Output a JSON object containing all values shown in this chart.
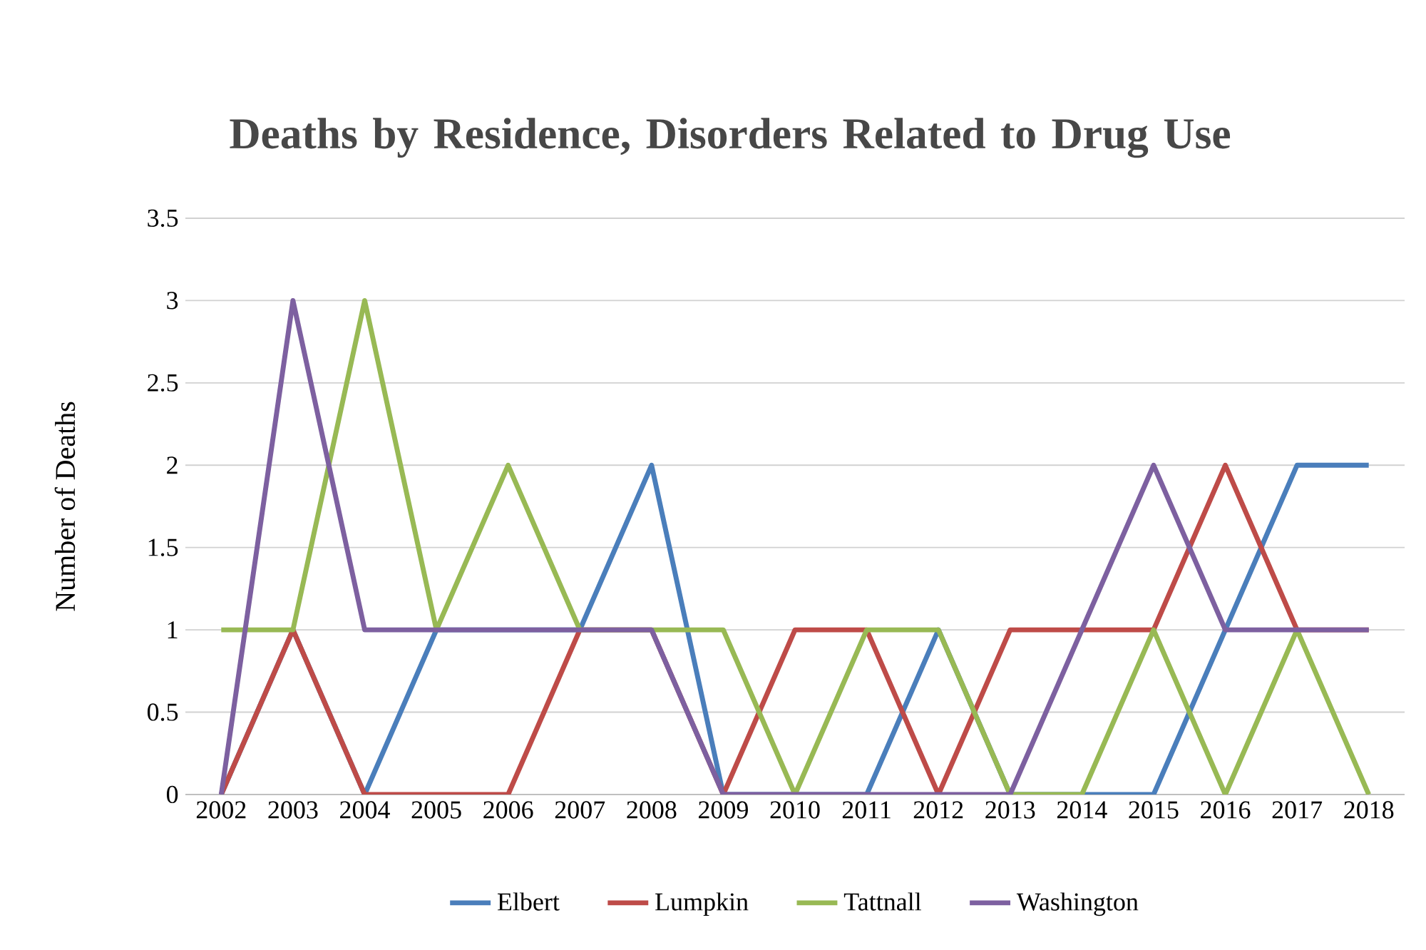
{
  "chart_data": {
    "type": "line",
    "title": "Deaths by Residence, Disorders Related to Drug Use",
    "ylabel": "Number of Deaths",
    "categories": [
      "2002",
      "2003",
      "2004",
      "2005",
      "2006",
      "2007",
      "2008",
      "2009",
      "2010",
      "2011",
      "2012",
      "2013",
      "2014",
      "2015",
      "2016",
      "2017",
      "2018"
    ],
    "series": [
      {
        "name": "Elbert",
        "color": "#4a7ebb",
        "values": [
          0,
          1,
          0,
          1,
          1,
          1,
          2,
          0,
          0,
          0,
          1,
          0,
          0,
          0,
          1,
          2,
          2
        ]
      },
      {
        "name": "Lumpkin",
        "color": "#be4b48",
        "values": [
          0,
          1,
          0,
          0,
          0,
          1,
          1,
          0,
          1,
          1,
          0,
          1,
          1,
          1,
          2,
          1,
          1
        ]
      },
      {
        "name": "Tattnall",
        "color": "#98b954",
        "values": [
          1,
          1,
          3,
          1,
          2,
          1,
          1,
          1,
          0,
          1,
          1,
          0,
          0,
          1,
          0,
          1,
          0
        ]
      },
      {
        "name": "Washington",
        "color": "#7d60a0",
        "values": [
          0,
          3,
          1,
          1,
          1,
          1,
          1,
          0,
          0,
          0,
          0,
          0,
          1,
          2,
          1,
          1,
          1
        ]
      }
    ],
    "ylim": [
      0,
      3.5
    ],
    "yticks": [
      0,
      0.5,
      1,
      1.5,
      2,
      2.5,
      3,
      3.5
    ],
    "grid": "y",
    "legend": "bottom",
    "marker": "none",
    "line_style": "solid"
  }
}
